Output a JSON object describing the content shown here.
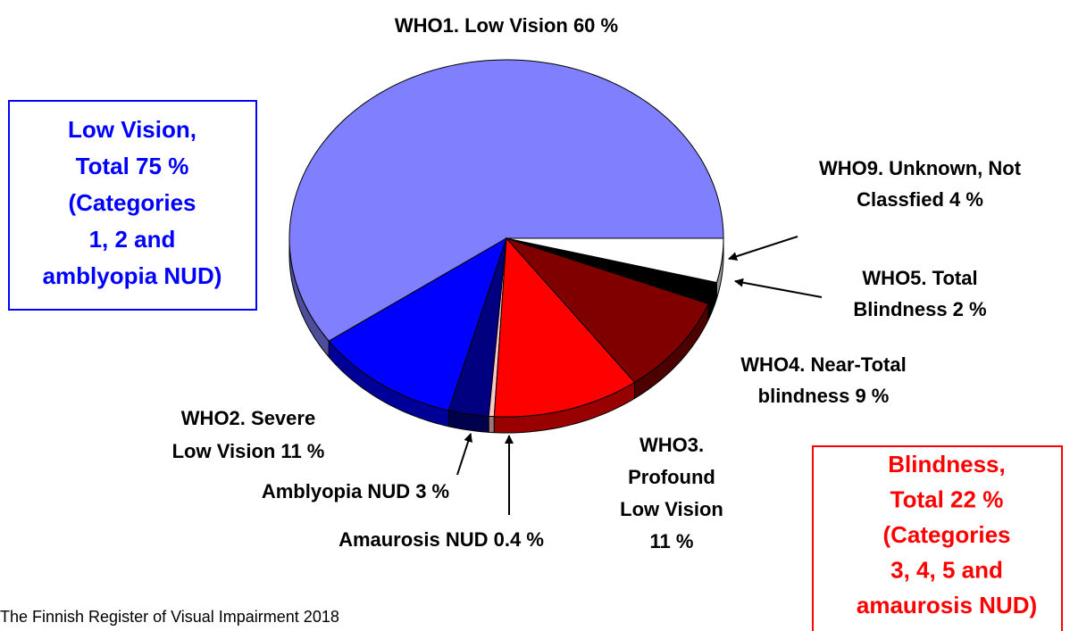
{
  "chart_data": {
    "type": "pie3d",
    "values": [
      60,
      11,
      3,
      0.4,
      11,
      9,
      2,
      4
    ],
    "value_labels": [
      [
        "WHO1. Low Vision 60 %"
      ],
      [
        "WHO2. Severe",
        "Low Vision 11 %"
      ],
      [
        "Amblyopia NUD 3 %"
      ],
      [
        "Amaurosis NUD 0.4 %"
      ],
      [
        "WHO3.",
        "Profound",
        "Low Vision",
        "11 %"
      ],
      [
        "WHO4. Near-Total",
        "blindness 9 %"
      ],
      [
        "WHO5. Total",
        "Blindness 2 %"
      ],
      [
        "WHO9. Unknown, Not",
        "Classfied 4 %"
      ]
    ],
    "colors": [
      "#8080ff",
      "#0000ff",
      "#000080",
      "#ffc8c8",
      "#ff0000",
      "#800000",
      "#000000",
      "#ffffff"
    ],
    "annotations": [
      {
        "color": "#0000ff",
        "lines": [
          "Low Vision,",
          "Total 75 %",
          "(Categories",
          "1, 2 and",
          "amblyopia NUD)"
        ]
      },
      {
        "color": "#ff0000",
        "lines": [
          "Blindness,",
          "Total 22 %",
          "(Categories",
          "3, 4, 5 and",
          "amaurosis NUD)"
        ]
      }
    ],
    "source": "The Finnish Register of Visual Impairment 2018"
  }
}
